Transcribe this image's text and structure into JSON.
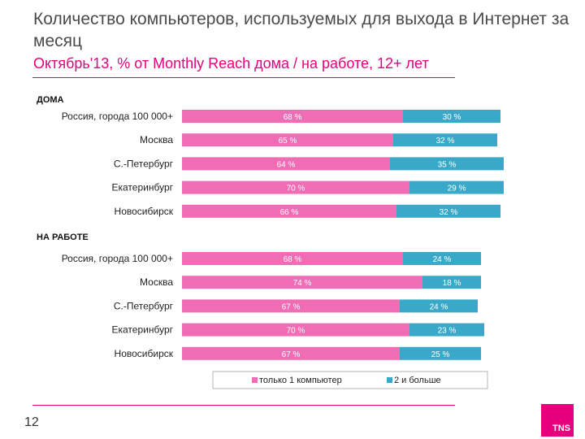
{
  "title": "Количество компьютеров, используемых для выхода в Интернет за месяц",
  "subtitle": "Октябрь'13, % от Monthly Reach дома / на работе, 12+ лет",
  "page_number": "12",
  "logo_text": "TNS",
  "colors": {
    "series1": "#f06cb4",
    "series2": "#3aa9c9",
    "accent": "#e6007e"
  },
  "chart_data": {
    "type": "bar",
    "orientation": "horizontal",
    "stacked": true,
    "xlim": [
      0,
      100
    ],
    "legend": [
      "только 1 компьютер",
      "2 и больше"
    ],
    "legend_position": "bottom",
    "sections": [
      {
        "label": "ДОМА",
        "categories": [
          "Россия, города 100 000+",
          "Москва",
          "С.-Петербург",
          "Екатеринбург",
          "Новосибирск"
        ],
        "series": [
          {
            "name": "только 1 компьютер",
            "values": [
              68,
              65,
              64,
              70,
              66
            ]
          },
          {
            "name": "2 и больше",
            "values": [
              30,
              32,
              35,
              29,
              32
            ]
          }
        ]
      },
      {
        "label": "НА РАБОТЕ",
        "categories": [
          "Россия, города 100 000+",
          "Москва",
          "С.-Петербург",
          "Екатеринбург",
          "Новосибирск"
        ],
        "series": [
          {
            "name": "только 1 компьютер",
            "values": [
              68,
              74,
              67,
              70,
              67
            ]
          },
          {
            "name": "2 и больше",
            "values": [
              24,
              18,
              24,
              23,
              25
            ]
          }
        ]
      }
    ]
  }
}
